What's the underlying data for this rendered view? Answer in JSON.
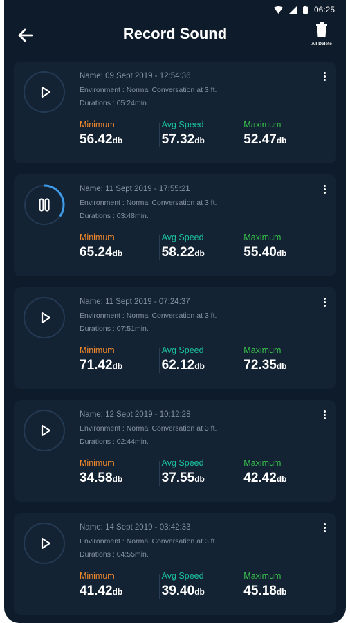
{
  "status_bar": {
    "time": "06:25"
  },
  "header": {
    "title": "Record Sound",
    "delete_label": "All Delete"
  },
  "colors": {
    "background": "#0e1b2a",
    "card": "#142334",
    "minimum": "#f0882c",
    "avg": "#1cc2a2",
    "maximum": "#37c44a",
    "progress": "#3d9be9"
  },
  "labels": {
    "minimum": "Minimum",
    "avg": "Avg Speed",
    "maximum": "Maximum",
    "unit": "db"
  },
  "recordings": [
    {
      "name": "Name: 09 Sept 2019 - 12:54:36",
      "environment": "Environment : Normal Conversation at 3 ft.",
      "duration": "Durations : 05:24min.",
      "minimum": "56.42",
      "avg": "57.32",
      "maximum": "52.47",
      "state": "play-icon"
    },
    {
      "name": "Name: 11 Sept 2019 - 17:55:21",
      "environment": "Environment : Normal Conversation at 3 ft.",
      "duration": "Durations : 03:48min.",
      "minimum": "65.24",
      "avg": "58.22",
      "maximum": "55.40",
      "state": "pause-icon",
      "progress": 0.35
    },
    {
      "name": "Name: 11 Sept 2019 - 07:24:37",
      "environment": "Environment : Normal Conversation at 3 ft.",
      "duration": "Durations : 07:51min.",
      "minimum": "71.42",
      "avg": "62.12",
      "maximum": "72.35",
      "state": "play-icon"
    },
    {
      "name": "Name: 12 Sept 2019 - 10:12:28",
      "environment": "Environment : Normal Conversation at 3 ft.",
      "duration": "Durations : 02:44min.",
      "minimum": "34.58",
      "avg": "37.55",
      "maximum": "42.42",
      "state": "play-icon"
    },
    {
      "name": "Name: 14 Sept 2019 - 03:42:33",
      "environment": "Environment : Normal Conversation at 3 ft.",
      "duration": "Durations : 04:55min.",
      "minimum": "41.42",
      "avg": "39.40",
      "maximum": "45.18",
      "state": "play-icon"
    }
  ]
}
